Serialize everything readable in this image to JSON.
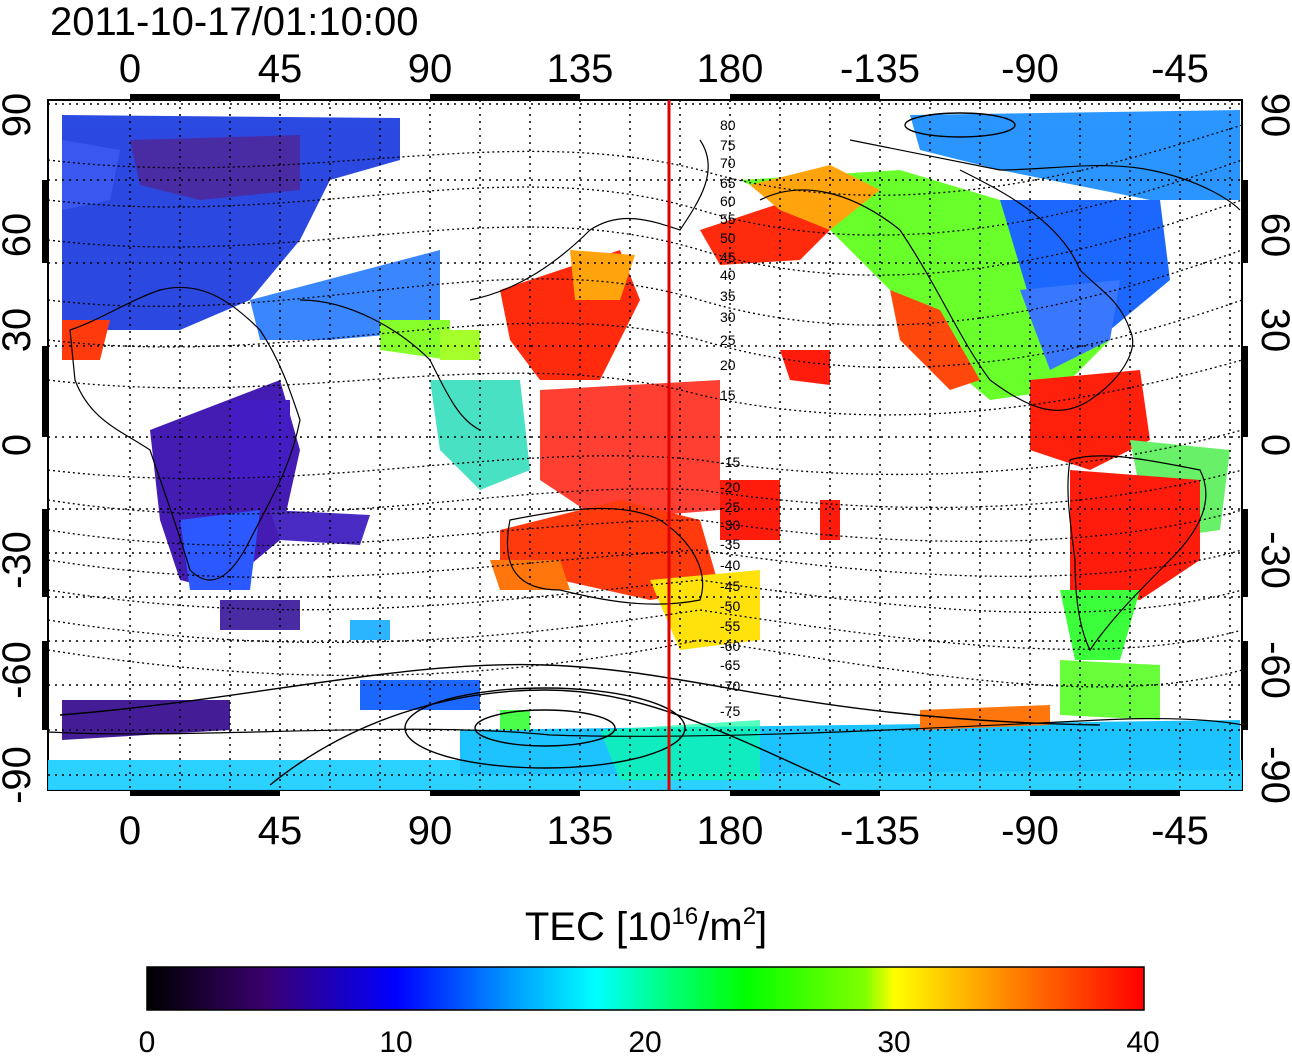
{
  "title": "2011-10-17/01:10:00",
  "map": {
    "top_axis_labels": [
      "0",
      "45",
      "90",
      "135",
      "180",
      "-135",
      "-90",
      "-45"
    ],
    "bottom_axis_labels": [
      "0",
      "45",
      "90",
      "135",
      "180",
      "-135",
      "-90",
      "-45"
    ],
    "left_axis_labels": [
      "90",
      "60",
      "30",
      "0",
      "-30",
      "-60",
      "-90"
    ],
    "right_axis_labels": [
      "90",
      "60",
      "30",
      "0",
      "-30",
      "-60",
      "-90"
    ],
    "contour_labels": [
      "80",
      "75",
      "70",
      "65",
      "60",
      "55",
      "50",
      "45",
      "40",
      "35",
      "30",
      "25",
      "20",
      "15",
      "-15",
      "-20",
      "-25",
      "-30",
      "-35",
      "-40",
      "-45",
      "-50",
      "-55",
      "-60",
      "-65",
      "-70",
      "-75"
    ],
    "meridian_line_color": "#e00000",
    "coastline_color": "#000000"
  },
  "colorbar": {
    "label_main": "TEC  [10",
    "label_sup1": "16",
    "label_mid": "/m",
    "label_sup2": "2",
    "label_end": "]",
    "tick_labels": [
      "0",
      "10",
      "20",
      "30",
      "40"
    ],
    "range": [
      0,
      40
    ],
    "colors": [
      "#000000",
      "#3a0070",
      "#0000ff",
      "#00ffff",
      "#00ff00",
      "#ffff00",
      "#ff8000",
      "#ff0000"
    ]
  }
}
